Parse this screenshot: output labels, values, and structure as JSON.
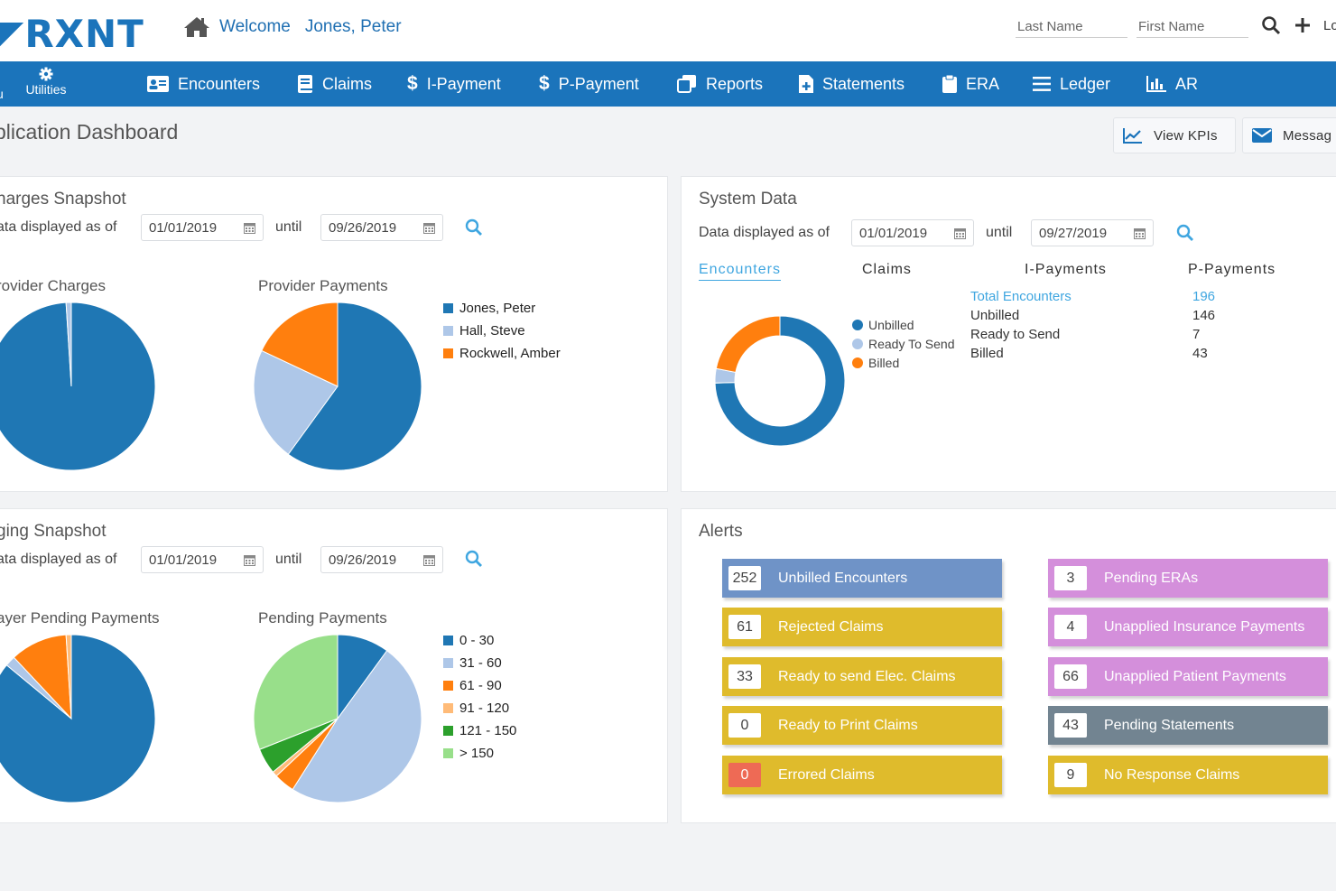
{
  "header": {
    "logo": "RXNT",
    "welcome": "Welcome",
    "user": "Jones, Peter",
    "last_name_placeholder": "Last Name",
    "first_name_placeholder": "First Name",
    "cut_text": "Lo"
  },
  "nav": {
    "cut_text": "u",
    "utilities": "Utilities",
    "items": [
      {
        "label": "Encounters",
        "icon": "id-card-icon"
      },
      {
        "label": "Claims",
        "icon": "book-icon"
      },
      {
        "label": "I-Payment",
        "icon": "dollar-icon"
      },
      {
        "label": "P-Payment",
        "icon": "dollar-icon"
      },
      {
        "label": "Reports",
        "icon": "copy-icon"
      },
      {
        "label": "Statements",
        "icon": "file-plus-icon"
      },
      {
        "label": "ERA",
        "icon": "clipboard-icon"
      },
      {
        "label": "Ledger",
        "icon": "list-icon"
      },
      {
        "label": "AR",
        "icon": "bar-chart-icon"
      }
    ]
  },
  "page": {
    "title": "plication Dashboard",
    "view_kpis": "View KPIs",
    "messages": "Messag"
  },
  "charges": {
    "title": "harges Snapshot",
    "as_of_label": "ata displayed as of",
    "from": "01/01/2019",
    "until_label": "until",
    "to": "09/26/2019",
    "chart1_title": "rovider Charges",
    "chart2_title": "Provider Payments"
  },
  "aging": {
    "title": "ging Snapshot",
    "as_of_label": "ata displayed as of",
    "from": "01/01/2019",
    "until_label": "until",
    "to": "09/26/2019",
    "chart1_title": "ayer Pending Payments",
    "chart2_title": "Pending Payments"
  },
  "system": {
    "title": "System Data",
    "as_of_label": "Data displayed as of",
    "from": "01/01/2019",
    "until_label": "until",
    "to": "09/27/2019",
    "tabs": [
      "Encounters",
      "Claims",
      "I-Payments",
      "P-Payments"
    ],
    "legend": [
      "Unbilled",
      "Ready To Send",
      "Billed"
    ],
    "stats": [
      {
        "label": "Total Encounters",
        "value": "196"
      },
      {
        "label": "Unbilled",
        "value": "146"
      },
      {
        "label": "Ready to Send",
        "value": "7"
      },
      {
        "label": "Billed",
        "value": "43"
      }
    ]
  },
  "alerts": {
    "title": "Alerts",
    "left": [
      {
        "count": "252",
        "label": "Unbilled Encounters"
      },
      {
        "count": "61",
        "label": "Rejected Claims"
      },
      {
        "count": "33",
        "label": "Ready to send Elec. Claims"
      },
      {
        "count": "0",
        "label": "Ready to Print Claims"
      },
      {
        "count": "0",
        "label": "Errored Claims"
      }
    ],
    "right": [
      {
        "count": "3",
        "label": "Pending ERAs"
      },
      {
        "count": "4",
        "label": "Unapplied Insurance Payments"
      },
      {
        "count": "66",
        "label": "Unapplied Patient Payments"
      },
      {
        "count": "43",
        "label": "Pending Statements"
      },
      {
        "count": "9",
        "label": "No Response Claims"
      }
    ]
  },
  "colors": {
    "brand": "#1b74bb",
    "series_blue": "#1f77b4",
    "series_lightblue": "#aec7e8",
    "series_orange": "#ff7f0e",
    "series_lightorange": "#ffbb78",
    "series_green": "#2ca02c",
    "series_lightgreen": "#98df8a"
  },
  "chart_data": [
    {
      "type": "pie",
      "title": "rovider Charges",
      "series": [
        {
          "name": "Jones, Peter",
          "values": [
            99
          ]
        },
        {
          "name": "Hall, Steve",
          "values": [
            1
          ]
        },
        {
          "name": "Rockwell, Amber",
          "values": [
            0
          ]
        }
      ],
      "legend": "right"
    },
    {
      "type": "pie",
      "title": "Provider Payments",
      "categories": [
        "Jones, Peter",
        "Hall, Steve",
        "Rockwell, Amber"
      ],
      "values": [
        60,
        22,
        18
      ],
      "legend": "right"
    },
    {
      "type": "pie",
      "title": "ayer Pending Payments",
      "categories": [
        "0 - 30",
        "31 - 60",
        "61 - 90",
        "91 - 120",
        "121 - 150",
        "> 150"
      ],
      "values": [
        86,
        2,
        11,
        1,
        0,
        0
      ],
      "legend": "right"
    },
    {
      "type": "pie",
      "title": "Pending Payments",
      "categories": [
        "0 - 30",
        "31 - 60",
        "61 - 90",
        "91 - 120",
        "121 - 150",
        "> 150"
      ],
      "values": [
        10,
        49,
        4,
        1,
        5,
        31
      ],
      "legend": "right"
    },
    {
      "type": "pie",
      "donut": true,
      "title": "",
      "categories": [
        "Unbilled",
        "Ready To Send",
        "Billed"
      ],
      "values": [
        146,
        7,
        43
      ],
      "legend": "right"
    }
  ]
}
